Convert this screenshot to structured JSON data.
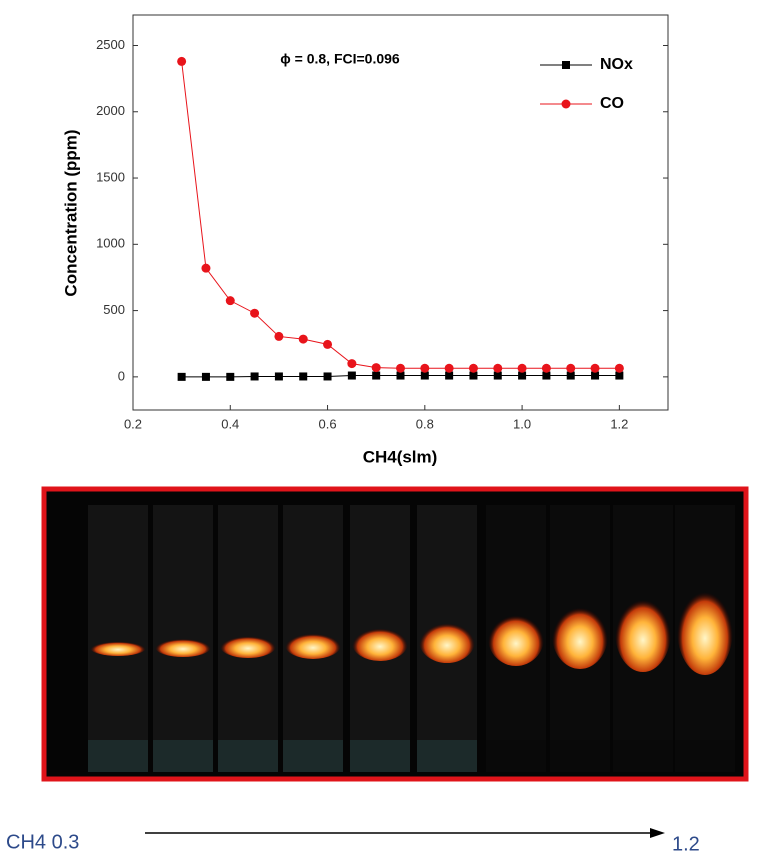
{
  "chart_data": {
    "type": "line",
    "annotation": "ϕ = 0.8,  FCI=0.096",
    "x_label": "CH4(slm)",
    "y_label": "Concentration (ppm)",
    "x": [
      0.3,
      0.35,
      0.4,
      0.45,
      0.5,
      0.55,
      0.6,
      0.65,
      0.7,
      0.75,
      0.8,
      0.85,
      0.9,
      0.95,
      1.0,
      1.05,
      1.1,
      1.15,
      1.2
    ],
    "series": [
      {
        "name": "NOx",
        "color": "#000000",
        "marker": "square",
        "values": [
          0,
          0,
          0,
          3,
          3,
          3,
          3,
          10,
          10,
          10,
          10,
          10,
          10,
          10,
          10,
          10,
          10,
          10,
          10
        ]
      },
      {
        "name": "CO",
        "color": "#e8141b",
        "marker": "circle",
        "values": [
          2380,
          820,
          575,
          480,
          305,
          285,
          245,
          100,
          70,
          65,
          65,
          65,
          65,
          65,
          65,
          65,
          65,
          65,
          65
        ]
      }
    ],
    "xlim": [
      0.2,
      1.3
    ],
    "xticks": [
      0.2,
      0.4,
      0.6,
      0.8,
      {
        "value": 1.0,
        "label": "1.0"
      },
      1.2
    ],
    "ylim": [
      -250,
      2730
    ],
    "yticks": [
      0,
      500,
      1000,
      1500,
      2000,
      2500
    ],
    "grid": false,
    "legend": "upper right"
  },
  "photo_labels": {
    "start": "CH4 0.3",
    "end": "1.2"
  }
}
